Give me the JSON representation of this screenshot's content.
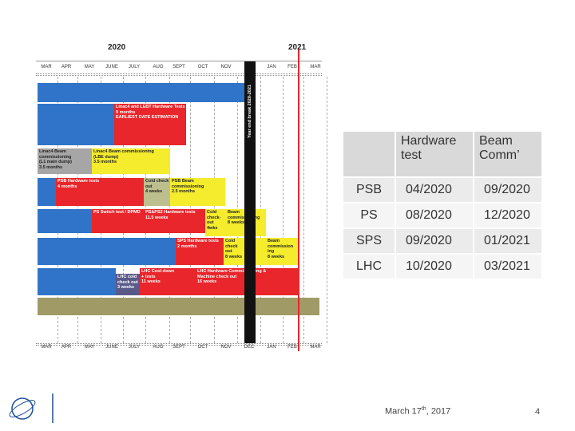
{
  "gantt": {
    "years": [
      "2020",
      "2021"
    ],
    "months": [
      "MAR",
      "APR",
      "MAY",
      "JUNE",
      "JULY",
      "AUG",
      "SEPT",
      "OCT",
      "NOV",
      "DEC",
      "JAN",
      "FEB",
      "MAR"
    ],
    "break_label": "Year end break 2020-2021",
    "bars": [
      {
        "color": "#2f74c8",
        "lines": []
      },
      {
        "color": "#2f74c8",
        "lines": []
      },
      {
        "color": "#e8262b",
        "lines": [
          "Linac4 and LEBT Hardware Tests",
          "9 months",
          "EARLIEST DATE ESTIMATION"
        ]
      },
      {
        "color": "#a6a6a6",
        "lines": [
          "Linac4 Beam",
          "commissioning",
          "(L1 main dump)",
          "3.5 months"
        ]
      },
      {
        "color": "#f4ec2c",
        "lines": [
          "Linac4 Beam commissioning",
          "(LBE dump)",
          "3.5 months"
        ]
      },
      {
        "color": "#2f74c8",
        "lines": []
      },
      {
        "color": "#e8262b",
        "lines": [
          "PSB Hardware tests",
          "4 months"
        ]
      },
      {
        "color": "#bdbf8f",
        "lines": [
          "Cold check",
          "out",
          "4 weeks"
        ]
      },
      {
        "color": "#f4ec2c",
        "lines": [
          "PSB Beam",
          "commissioning",
          "2.5 months"
        ]
      },
      {
        "color": "#2f74c8",
        "lines": []
      },
      {
        "color": "#e8262b",
        "lines": [
          "PS Switch test / DPMD"
        ]
      },
      {
        "color": "#e8262b",
        "lines": [
          "PS&PS2 Hardware tests",
          "11.5 weeks"
        ]
      },
      {
        "color": "#f4ec2c",
        "lines": [
          "Cold",
          "check-",
          "out",
          "4wks"
        ]
      },
      {
        "color": "#f4ec2c",
        "lines": [
          "Beam",
          "commissioning",
          "8 weeks"
        ]
      },
      {
        "color": "#2f74c8",
        "lines": []
      },
      {
        "color": "#e8262b",
        "lines": [
          "SPS Hardware tests",
          "2 months"
        ]
      },
      {
        "color": "#f4ec2c",
        "lines": [
          "Cold",
          "check",
          "out",
          "8 weeks"
        ]
      },
      {
        "color": "#f4ec2c",
        "lines": [
          "Beam",
          "commission",
          "ing",
          "8 weeks"
        ]
      },
      {
        "color": "#2f74c8",
        "lines": []
      },
      {
        "color": "#5a5a8a",
        "lines": [
          "LHC cold",
          "check out",
          "3 weeks"
        ]
      },
      {
        "color": "#e8262b",
        "lines": [
          "LHC Cool-down",
          "+ tests",
          "11 weeks"
        ]
      },
      {
        "color": "#e8262b",
        "lines": [
          "LHC Hardware Commissioning &",
          "Machine check out",
          "16 weeks"
        ]
      },
      {
        "color": "#a09b66",
        "lines": []
      }
    ]
  },
  "table": {
    "header": [
      "Hardware test",
      "Beam Comm’"
    ],
    "rows": [
      [
        "PSB",
        "04/2020",
        "09/2020"
      ],
      [
        "PS",
        "08/2020",
        "12/2020"
      ],
      [
        "SPS",
        "09/2020",
        "01/2021"
      ],
      [
        "LHC",
        "10/2020",
        "03/2021"
      ]
    ]
  },
  "footer": {
    "date": {
      "main": "March 17",
      "sup": "th",
      "tail": ", 2017"
    },
    "page": "4"
  }
}
